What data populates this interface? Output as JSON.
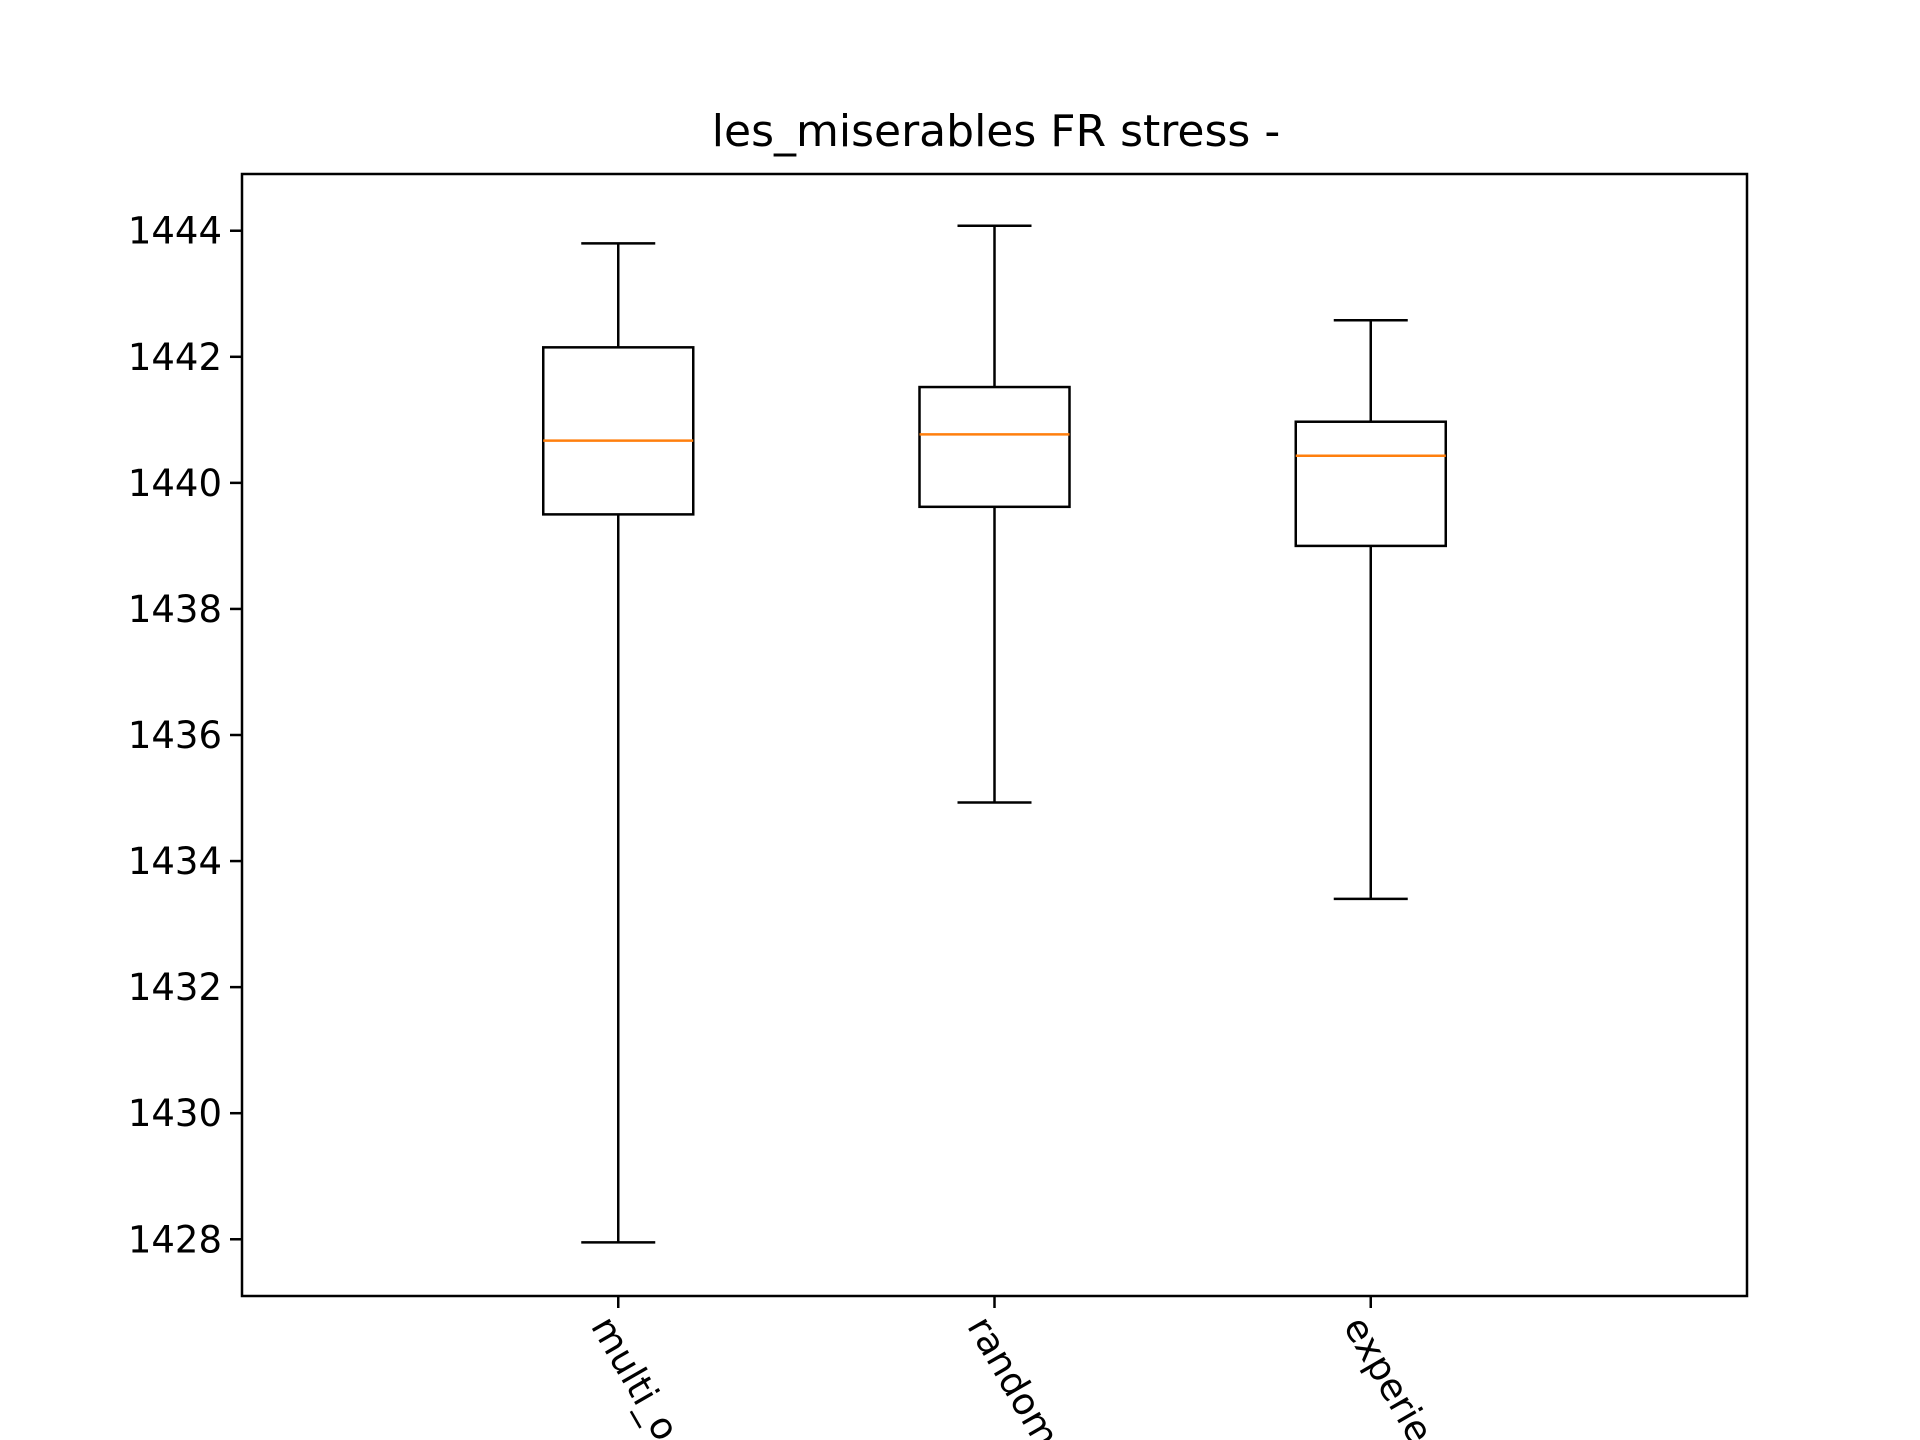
{
  "chart_data": {
    "type": "box",
    "title": "les_miserables FR stress -",
    "xlabel": "",
    "ylabel": "",
    "ylim": [
      1427.1,
      1444.9
    ],
    "yticks": [
      1428,
      1430,
      1432,
      1434,
      1436,
      1438,
      1440,
      1442,
      1444
    ],
    "grid": false,
    "categories": [
      "multi_o",
      "random",
      "experie"
    ],
    "boxes": [
      {
        "category": "multi_o",
        "whisker_low": 1427.95,
        "q1": 1439.5,
        "median": 1440.67,
        "q3": 1442.15,
        "whisker_high": 1443.8
      },
      {
        "category": "random",
        "whisker_low": 1434.93,
        "q1": 1439.62,
        "median": 1440.77,
        "q3": 1441.52,
        "whisker_high": 1444.08
      },
      {
        "category": "experie",
        "whisker_low": 1433.4,
        "q1": 1439.0,
        "median": 1440.43,
        "q3": 1440.97,
        "whisker_high": 1442.58
      }
    ],
    "colors": {
      "box": "#000000",
      "median": "#ff7f0e",
      "frame": "#000000"
    }
  }
}
